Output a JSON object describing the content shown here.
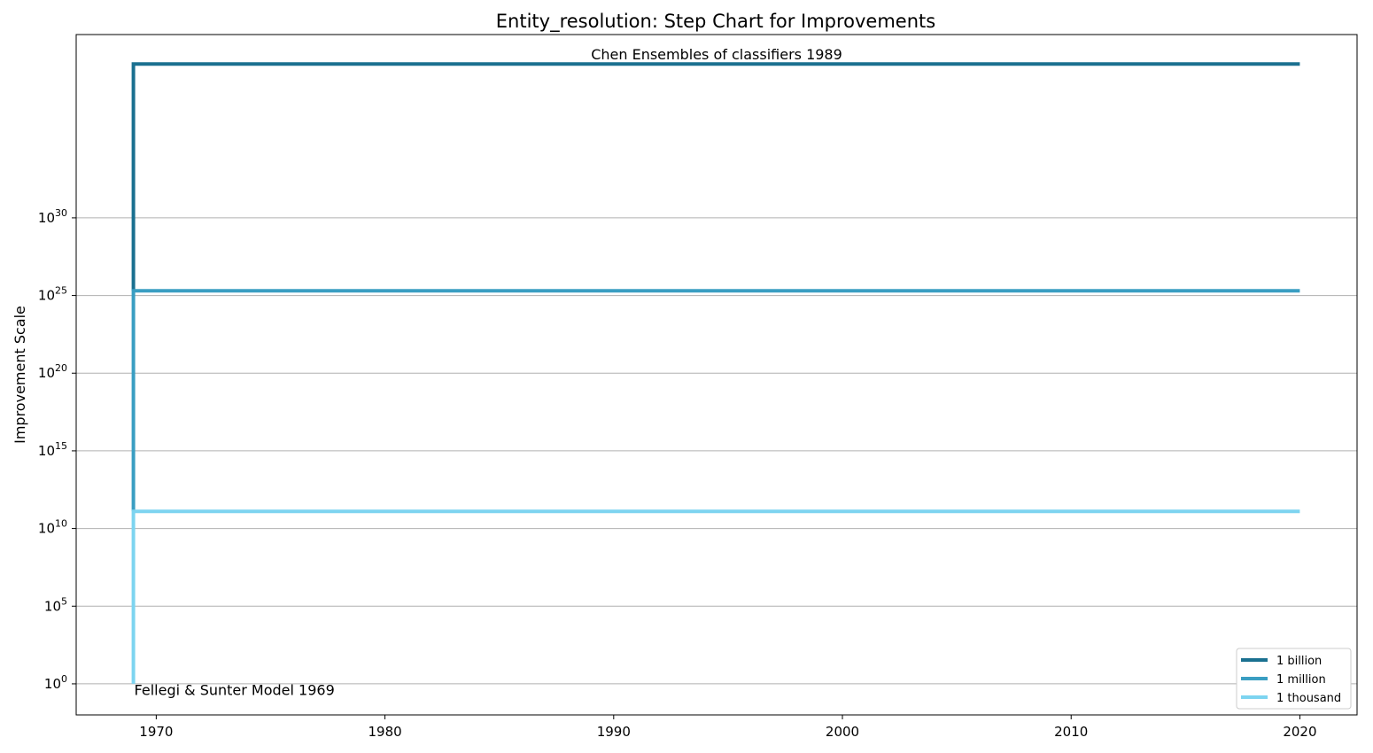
{
  "chart_data": {
    "type": "line",
    "title": "Entity_resolution: Step Chart for Improvements",
    "xlabel": "",
    "ylabel": "Improvement Scale",
    "x_ticks": [
      1970,
      1980,
      1990,
      2000,
      2010,
      2020
    ],
    "xlim": [
      1966.5,
      2022.5
    ],
    "y_scale": "log",
    "ylim_exponent": [
      -2,
      41.8
    ],
    "y_tick_exponents": [
      0,
      5,
      10,
      15,
      20,
      25,
      30
    ],
    "grid": "horizontal",
    "legend_position": "bottom-right",
    "series": [
      {
        "name": "1 billion",
        "color": "#1a7090",
        "x": [
          1969,
          1969,
          2020
        ],
        "y_exponent": [
          25.3,
          39.9,
          39.9
        ]
      },
      {
        "name": "1 million",
        "color": "#3a9ec2",
        "x": [
          1969,
          1969,
          2020
        ],
        "y_exponent": [
          11.1,
          25.3,
          25.3
        ]
      },
      {
        "name": "1 thousand",
        "color": "#7dd4f0",
        "x": [
          1969,
          1969,
          2020
        ],
        "y_exponent": [
          0,
          11.1,
          11.1
        ]
      }
    ],
    "annotations": [
      {
        "text": "Chen Ensembles of classifiers 1989",
        "x": 1994.5,
        "y_exponent": 40.2
      },
      {
        "text": "Fellegi & Sunter Model 1969",
        "x": 1969,
        "y_exponent": -0.5
      }
    ]
  }
}
